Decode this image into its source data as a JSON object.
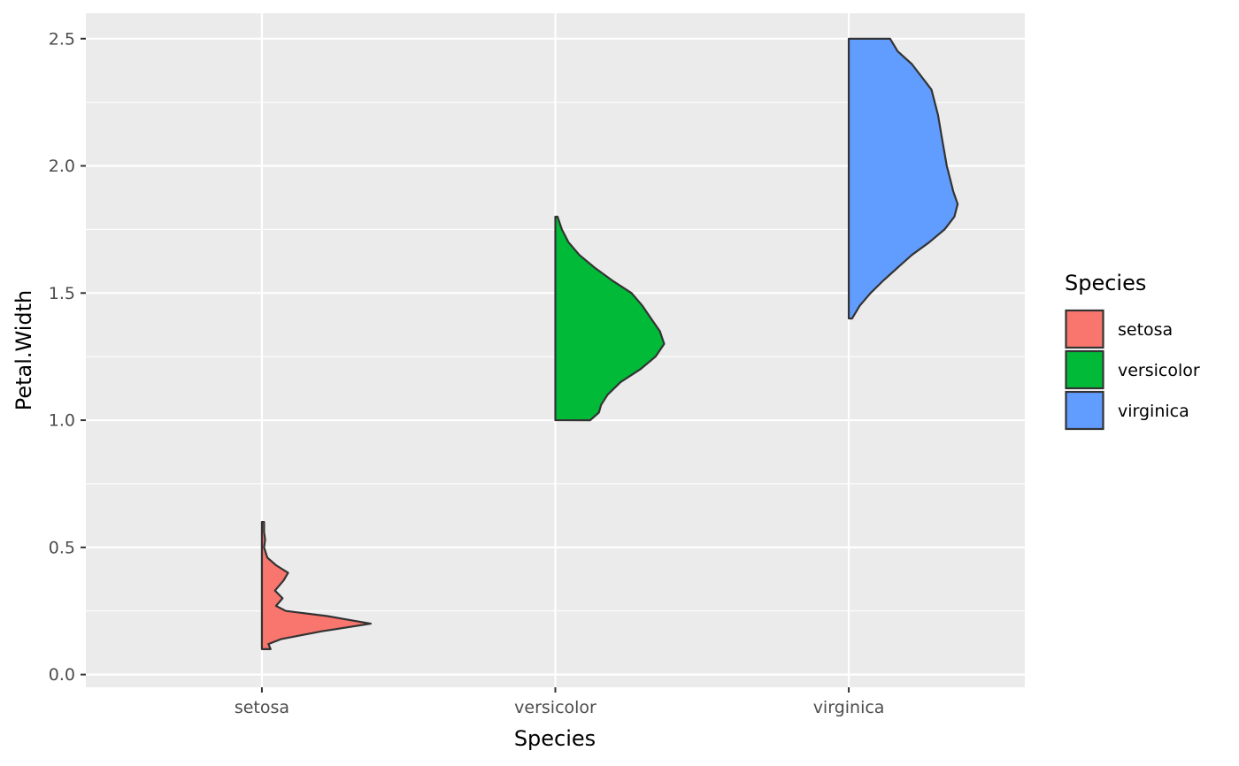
{
  "chart_data": {
    "type": "violin",
    "xlabel": "Species",
    "ylabel": "Petal.Width",
    "categories": [
      "setosa",
      "versicolor",
      "virginica"
    ],
    "ylim": [
      -0.05,
      2.6
    ],
    "y_ticks": [
      "0.0",
      "0.5",
      "1.0",
      "1.5",
      "2.0",
      "2.5"
    ],
    "y_tick_values": [
      0.0,
      0.5,
      1.0,
      1.5,
      2.0,
      2.5
    ],
    "grid": true,
    "legend": {
      "title": "Species",
      "position": "right",
      "entries": [
        "setosa",
        "versicolor",
        "virginica"
      ]
    },
    "colors": {
      "setosa": "#F8766D",
      "versicolor": "#00BA38",
      "virginica": "#619CFF"
    },
    "series": [
      {
        "category": "setosa",
        "min": 0.1,
        "max": 0.6,
        "density_profile": [
          [
            0.1,
            0.08
          ],
          [
            0.12,
            0.06
          ],
          [
            0.14,
            0.18
          ],
          [
            0.17,
            0.55
          ],
          [
            0.2,
            1.0
          ],
          [
            0.23,
            0.6
          ],
          [
            0.25,
            0.22
          ],
          [
            0.27,
            0.13
          ],
          [
            0.3,
            0.19
          ],
          [
            0.33,
            0.12
          ],
          [
            0.37,
            0.2
          ],
          [
            0.4,
            0.24
          ],
          [
            0.43,
            0.13
          ],
          [
            0.46,
            0.05
          ],
          [
            0.5,
            0.02
          ],
          [
            0.53,
            0.03
          ],
          [
            0.56,
            0.02
          ],
          [
            0.6,
            0.02
          ]
        ]
      },
      {
        "category": "versicolor",
        "min": 1.0,
        "max": 1.8,
        "density_profile": [
          [
            1.0,
            0.32
          ],
          [
            1.03,
            0.4
          ],
          [
            1.06,
            0.42
          ],
          [
            1.1,
            0.48
          ],
          [
            1.15,
            0.6
          ],
          [
            1.2,
            0.78
          ],
          [
            1.25,
            0.92
          ],
          [
            1.3,
            1.0
          ],
          [
            1.35,
            0.96
          ],
          [
            1.4,
            0.88
          ],
          [
            1.45,
            0.8
          ],
          [
            1.5,
            0.7
          ],
          [
            1.55,
            0.52
          ],
          [
            1.6,
            0.36
          ],
          [
            1.65,
            0.22
          ],
          [
            1.7,
            0.12
          ],
          [
            1.75,
            0.06
          ],
          [
            1.8,
            0.02
          ]
        ]
      },
      {
        "category": "virginica",
        "min": 1.4,
        "max": 2.5,
        "density_profile": [
          [
            1.4,
            0.03
          ],
          [
            1.45,
            0.1
          ],
          [
            1.5,
            0.2
          ],
          [
            1.55,
            0.32
          ],
          [
            1.6,
            0.45
          ],
          [
            1.65,
            0.58
          ],
          [
            1.7,
            0.74
          ],
          [
            1.75,
            0.88
          ],
          [
            1.8,
            0.97
          ],
          [
            1.85,
            1.0
          ],
          [
            1.9,
            0.96
          ],
          [
            1.95,
            0.93
          ],
          [
            2.0,
            0.9
          ],
          [
            2.1,
            0.86
          ],
          [
            2.2,
            0.82
          ],
          [
            2.3,
            0.76
          ],
          [
            2.4,
            0.58
          ],
          [
            2.45,
            0.45
          ],
          [
            2.5,
            0.38
          ]
        ]
      }
    ]
  }
}
